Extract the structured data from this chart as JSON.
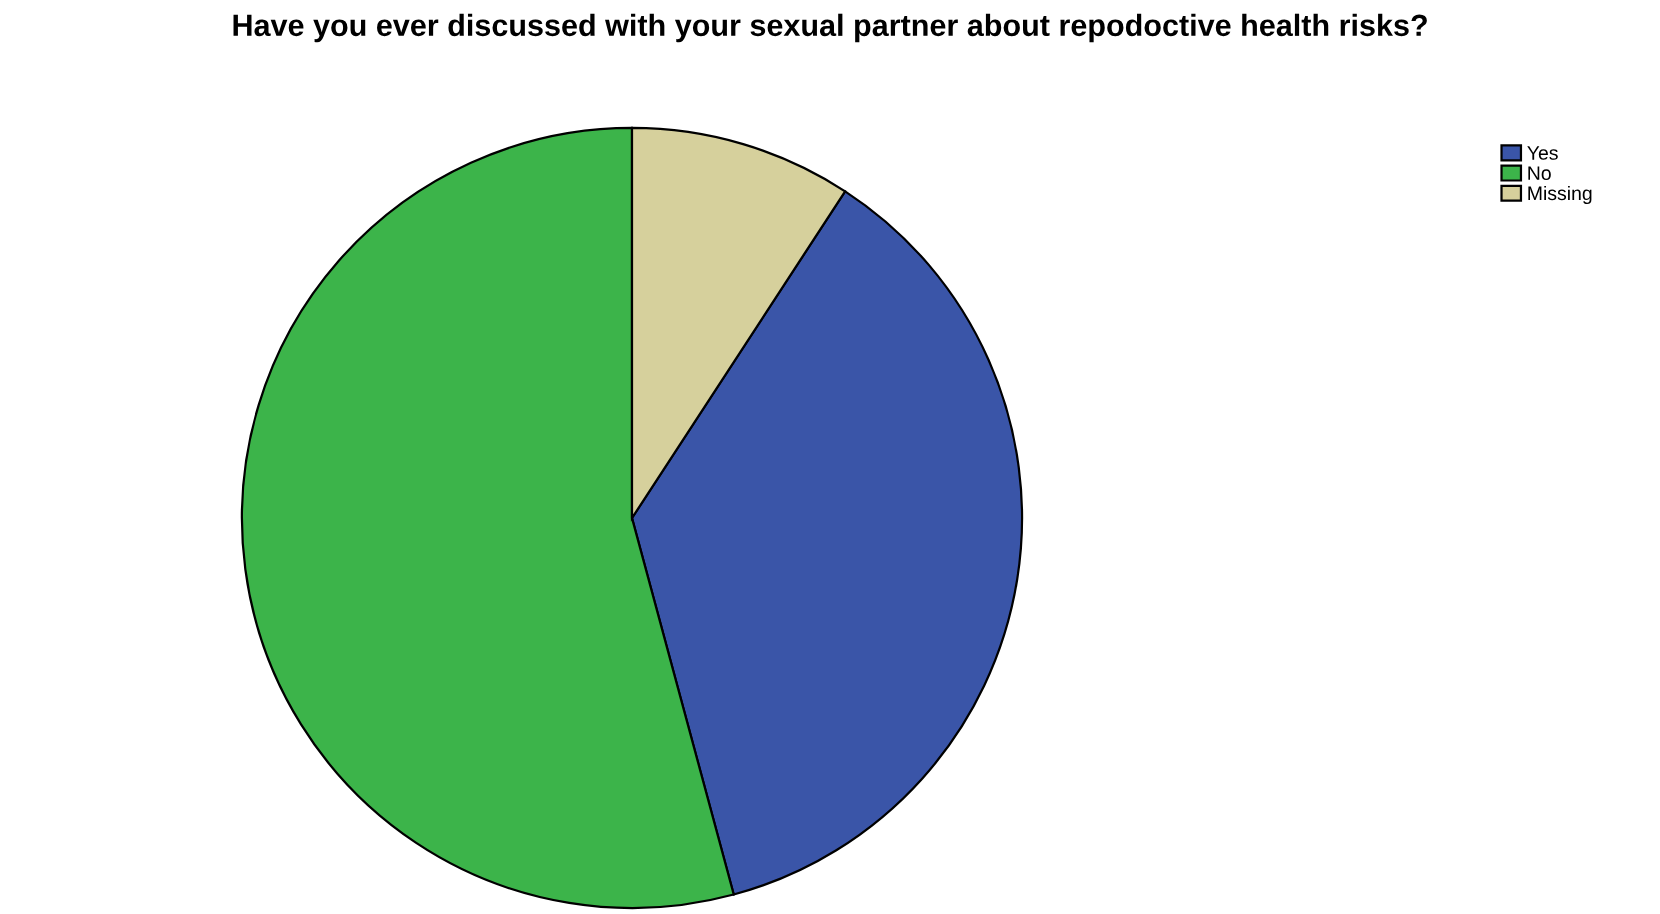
{
  "chart_data": {
    "type": "pie",
    "title": "Have you ever discussed with your sexual partner about repodoctive health risks?",
    "categories": [
      "Yes",
      "No",
      "Missing"
    ],
    "values": [
      36.6,
      54.2,
      9.2
    ],
    "colors": [
      "#3a55a8",
      "#3cb44a",
      "#d6d09c"
    ],
    "legend": "top right"
  }
}
